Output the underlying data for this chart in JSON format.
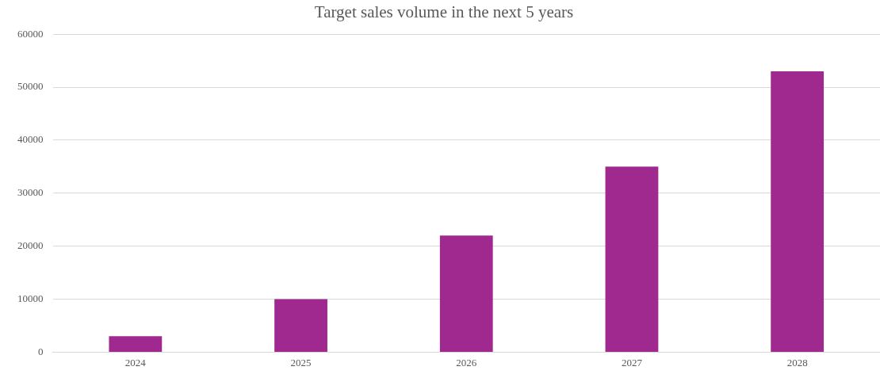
{
  "chart_data": {
    "type": "bar",
    "title": "Target sales volume in the next 5 years",
    "categories": [
      "2024",
      "2025",
      "2026",
      "2027",
      "2028"
    ],
    "values": [
      3000,
      10000,
      22000,
      35000,
      53000
    ],
    "color": "#a0298f",
    "ylim": [
      0,
      60000
    ],
    "yticks": [
      0,
      10000,
      20000,
      30000,
      40000,
      50000,
      60000
    ],
    "grid": "y"
  }
}
